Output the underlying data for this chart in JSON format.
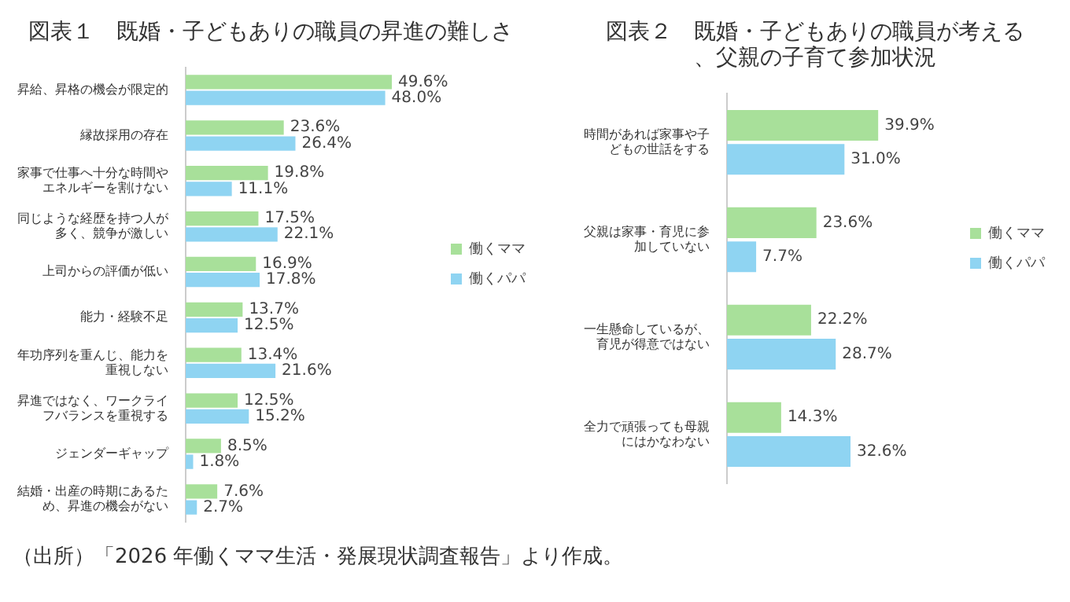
{
  "chart_data": [
    {
      "type": "bar",
      "orientation": "horizontal",
      "title": "図表１　既婚・子どもありの職員の昇進の難しさ",
      "legend": "right",
      "categories": [
        "昇給、昇格の機会が限定的",
        "縁故採用の存在",
        "家事で仕事へ十分な時間やエネルギーを割けない",
        "同じような経歴を持つ人が多く、競争が激しい",
        "上司からの評価が低い",
        "能力・経験不足",
        "年功序列を重んじ、能力を重視しない",
        "昇進ではなく、ワークライフバランスを重視する",
        "ジェンダーギャップ",
        "結婚・出産の時期にあるため、昇進の機会がない"
      ],
      "series": [
        {
          "name": "働くママ",
          "color": "#a8e09a",
          "values": [
            49.6,
            23.6,
            19.8,
            17.5,
            16.9,
            13.7,
            13.4,
            12.5,
            8.5,
            7.6
          ],
          "value_labels": [
            "49.6%",
            "23.6%",
            "19.8%",
            "17.5%",
            "16.9%",
            "13.7%",
            "13.4%",
            "12.5%",
            "8.5%",
            "7.6%"
          ]
        },
        {
          "name": "働くパパ",
          "color": "#8fd4f2",
          "values": [
            48.0,
            26.4,
            11.1,
            22.1,
            17.8,
            12.5,
            21.6,
            15.2,
            1.8,
            2.7
          ],
          "value_labels": [
            "48.0%",
            "26.4%",
            "11.1%",
            "22.1%",
            "17.8%",
            "12.5%",
            "21.6%",
            "15.2%",
            "1.8%",
            "2.7%"
          ]
        }
      ],
      "annotations": [
        "（出所）「2026 年働くママ生活・発展現状調査報告」より作成。"
      ]
    },
    {
      "type": "bar",
      "orientation": "horizontal",
      "title": "図表２　既婚・子どもありの職員が考える、父親の子育て参加状況",
      "legend": "right",
      "categories": [
        "時間があれば家事や子どもの世話をする",
        "父親は家事・育児に参加していない",
        "一生懸命しているが、育児が得意ではない",
        "全力で頑張っても母親にはかなわない"
      ],
      "series": [
        {
          "name": "働くママ",
          "color": "#a8e09a",
          "values": [
            39.9,
            23.6,
            22.2,
            14.3
          ],
          "value_labels": [
            "39.9%",
            "23.6%",
            "22.2%",
            "14.3%"
          ]
        },
        {
          "name": "働くパパ",
          "color": "#8fd4f2",
          "values": [
            31.0,
            7.7,
            28.7,
            32.6
          ],
          "value_labels": [
            "31.0%",
            "7.7%",
            "28.7%",
            "32.6%"
          ]
        }
      ]
    }
  ]
}
